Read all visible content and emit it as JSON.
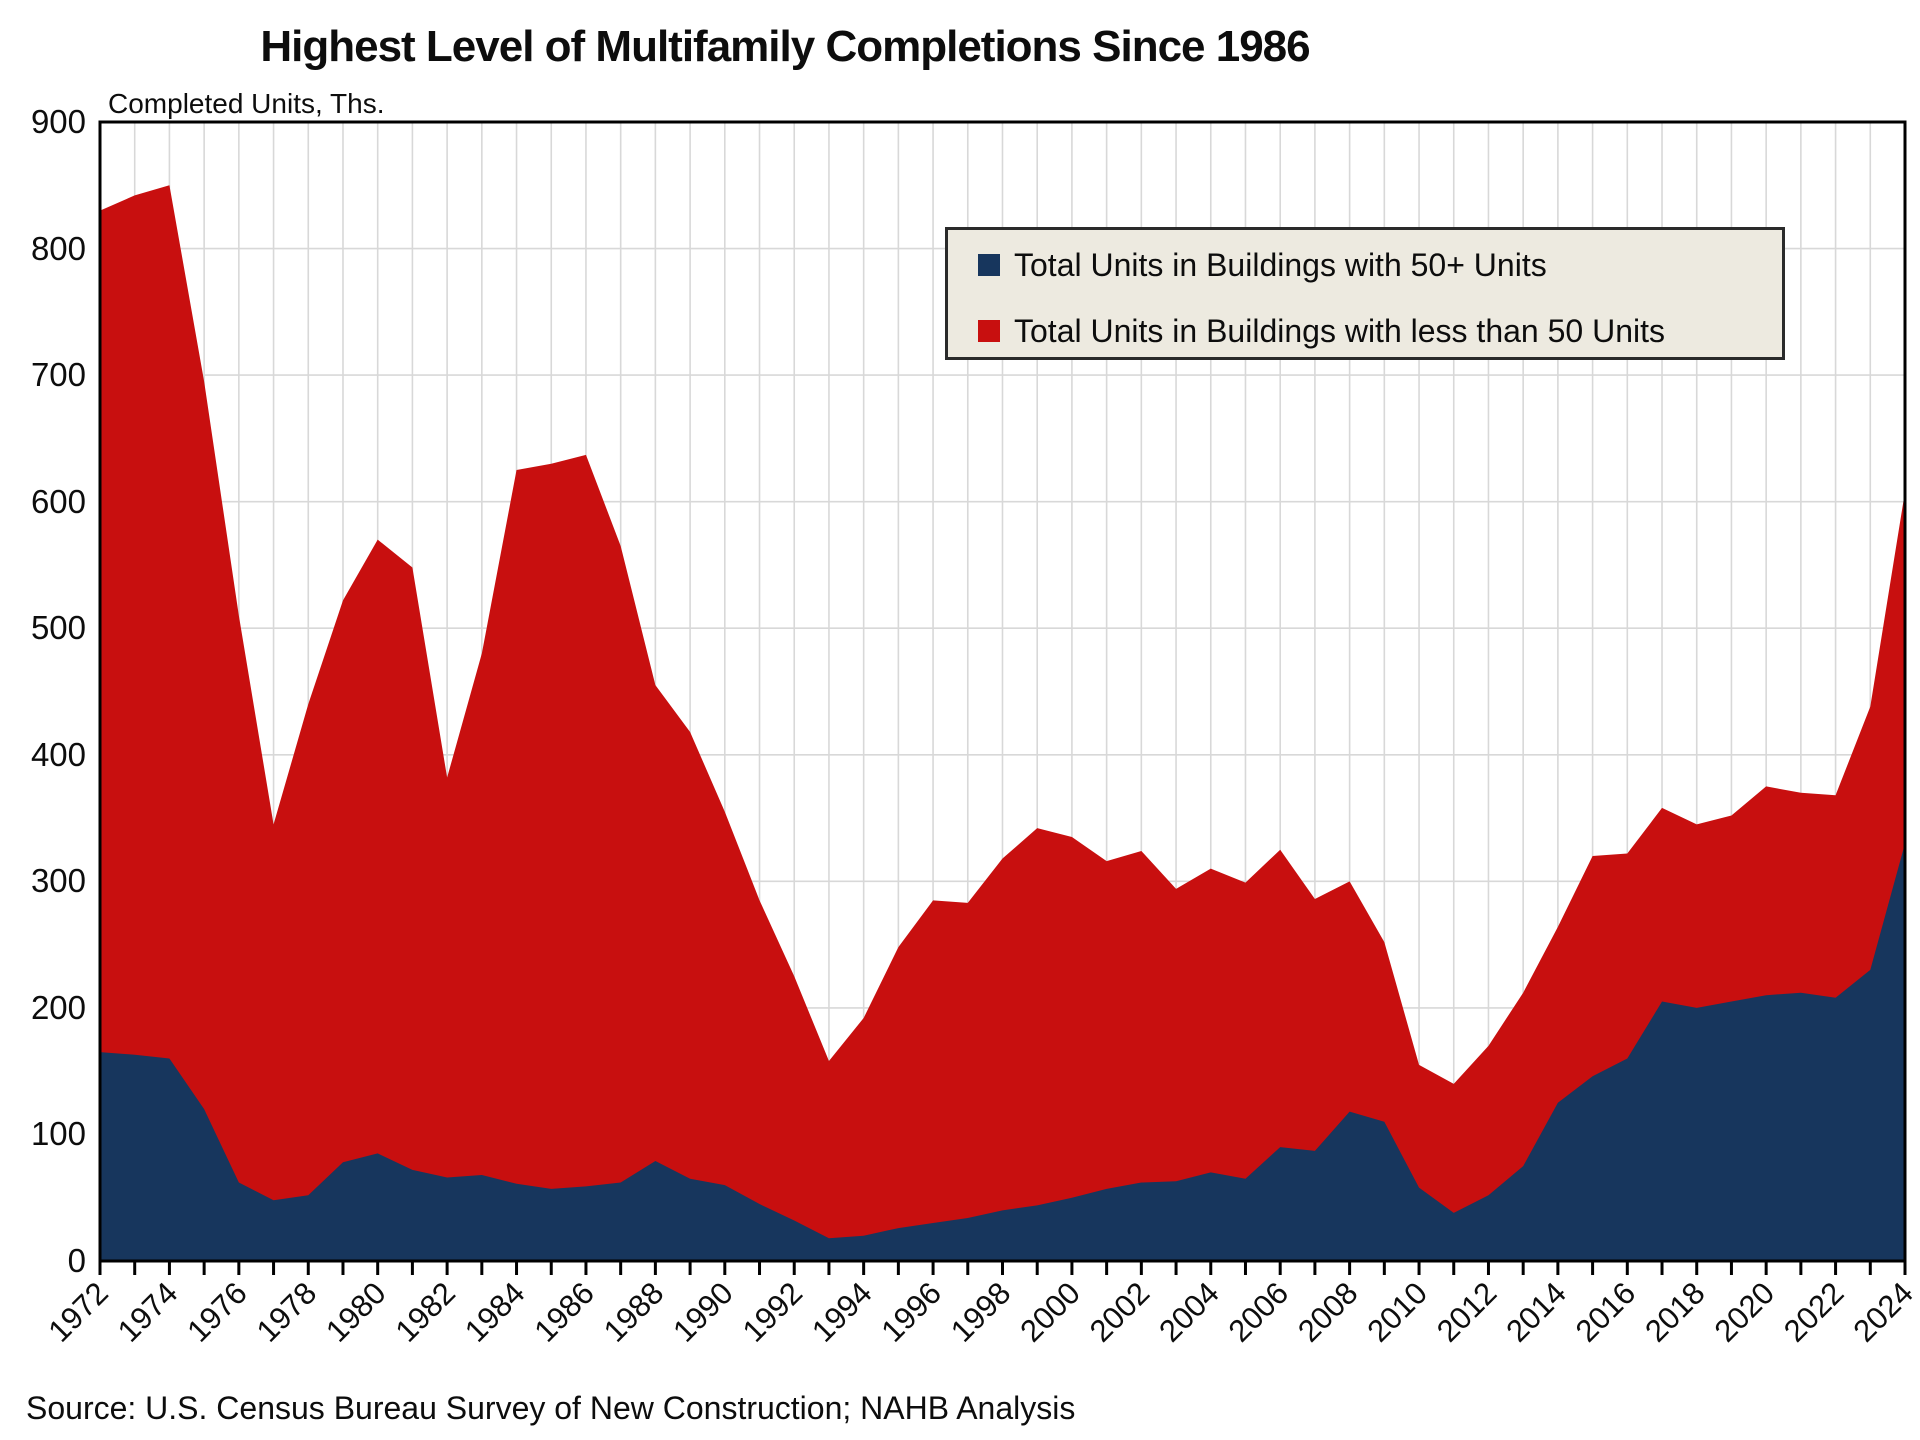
{
  "title": "Highest Level of Multifamily Completions Since 1986",
  "axis_unit_label": "Completed Units, Ths.",
  "source": "Source: U.S. Census Bureau Survey of New Construction; NAHB Analysis",
  "colors": {
    "series_50plus": "#17365D",
    "series_less50": "#C80F0F",
    "grid": "#D8D8D8",
    "plot_border": "#000000",
    "legend_bg": "#EDEAE0",
    "legend_border": "#2A2A2A"
  },
  "legend": {
    "items": [
      {
        "label": "Total Units in Buildings with 50+ Units",
        "color": "#17365D"
      },
      {
        "label": "Total Units in Buildings with less than 50 Units",
        "color": "#C80F0F"
      }
    ]
  },
  "chart_data": {
    "type": "area",
    "stacked": true,
    "title": "Highest Level of Multifamily Completions Since 1986",
    "ylabel": "Completed Units, Ths.",
    "ylim": [
      0,
      900
    ],
    "y_tick_step": 100,
    "x_label_step": 2,
    "grid": true,
    "legend_position": "top-right",
    "x": [
      1972,
      1973,
      1974,
      1975,
      1976,
      1977,
      1978,
      1979,
      1980,
      1981,
      1982,
      1983,
      1984,
      1985,
      1986,
      1987,
      1988,
      1989,
      1990,
      1991,
      1992,
      1993,
      1994,
      1995,
      1996,
      1997,
      1998,
      1999,
      2000,
      2001,
      2002,
      2003,
      2004,
      2005,
      2006,
      2007,
      2008,
      2009,
      2010,
      2011,
      2012,
      2013,
      2014,
      2015,
      2016,
      2017,
      2018,
      2019,
      2020,
      2021,
      2022,
      2023,
      2024
    ],
    "series": [
      {
        "name": "Total Units in Buildings with 50+ Units",
        "color": "#17365D",
        "values": [
          165,
          163,
          160,
          120,
          62,
          48,
          52,
          78,
          85,
          72,
          66,
          68,
          61,
          57,
          59,
          62,
          79,
          65,
          60,
          45,
          32,
          18,
          20,
          26,
          30,
          34,
          40,
          44,
          50,
          57,
          62,
          63,
          70,
          65,
          90,
          87,
          118,
          110,
          58,
          38,
          52,
          75,
          125,
          146,
          160,
          205,
          200,
          205,
          210,
          212,
          208,
          230,
          330
        ]
      },
      {
        "name": "Total Units in Buildings with less than 50 Units",
        "color": "#C80F0F",
        "values": [
          665,
          679,
          690,
          575,
          448,
          297,
          388,
          444,
          485,
          476,
          316,
          412,
          564,
          573,
          578,
          503,
          376,
          353,
          295,
          240,
          193,
          140,
          172,
          222,
          255,
          249,
          278,
          298,
          285,
          259,
          262,
          231,
          240,
          234,
          235,
          199,
          182,
          142,
          97,
          102,
          118,
          137,
          139,
          174,
          162,
          153,
          145,
          147,
          165,
          158,
          160,
          208,
          278
        ]
      }
    ],
    "stack_totals": [
      830,
      842,
      850,
      695,
      510,
      345,
      440,
      522,
      570,
      548,
      382,
      480,
      625,
      630,
      637,
      565,
      455,
      418,
      355,
      285,
      225,
      158,
      192,
      248,
      285,
      283,
      318,
      342,
      335,
      316,
      324,
      294,
      310,
      299,
      325,
      286,
      300,
      252,
      155,
      140,
      170,
      212,
      264,
      320,
      322,
      358,
      345,
      352,
      375,
      370,
      368,
      438,
      608
    ]
  }
}
